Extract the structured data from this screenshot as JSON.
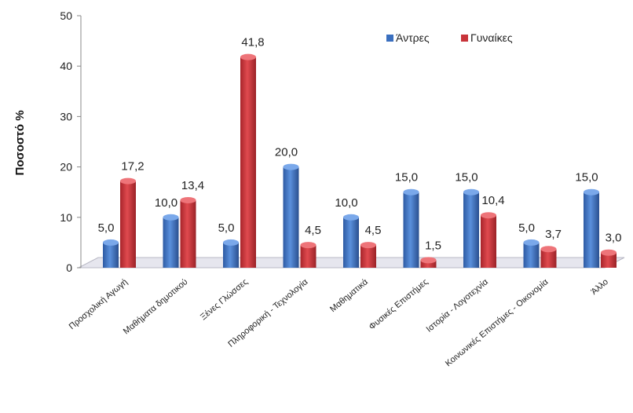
{
  "chart_data": {
    "type": "bar",
    "ylabel": "Ποσοστό %",
    "ylim": [
      0,
      50
    ],
    "yticks": [
      0,
      10,
      20,
      30,
      40,
      50
    ],
    "grid": false,
    "legend_position": "top-right",
    "categories": [
      "Προσχολική Αγωγή",
      "Μαθήματα δημοτικού",
      "Ξένες Γλώσσες",
      "Πληροφορική - Τεχνολογία",
      "Μαθηματικά",
      "Φυσικές Επιστήμες",
      "Ιστορία - Λογοτεχνία",
      "Κοινωνικές Επιστήμες - Οικονομία",
      "Άλλο"
    ],
    "series": [
      {
        "name": "Άντρες",
        "color": "#3a6fbf",
        "values": [
          5.0,
          10.0,
          5.0,
          20.0,
          10.0,
          15.0,
          15.0,
          5.0,
          15.0
        ],
        "labels": [
          "5,0",
          "10,0",
          "5,0",
          "20,0",
          "10,0",
          "15,0",
          "15,0",
          "5,0",
          "15,0"
        ]
      },
      {
        "name": "Γυναίκες",
        "color": "#c8343a",
        "values": [
          17.2,
          13.4,
          41.8,
          4.5,
          4.5,
          1.5,
          10.4,
          3.7,
          3.0
        ],
        "labels": [
          "17,2",
          "13,4",
          "41,8",
          "4,5",
          "4,5",
          "1,5",
          "10,4",
          "3,7",
          "3,0"
        ]
      }
    ]
  }
}
